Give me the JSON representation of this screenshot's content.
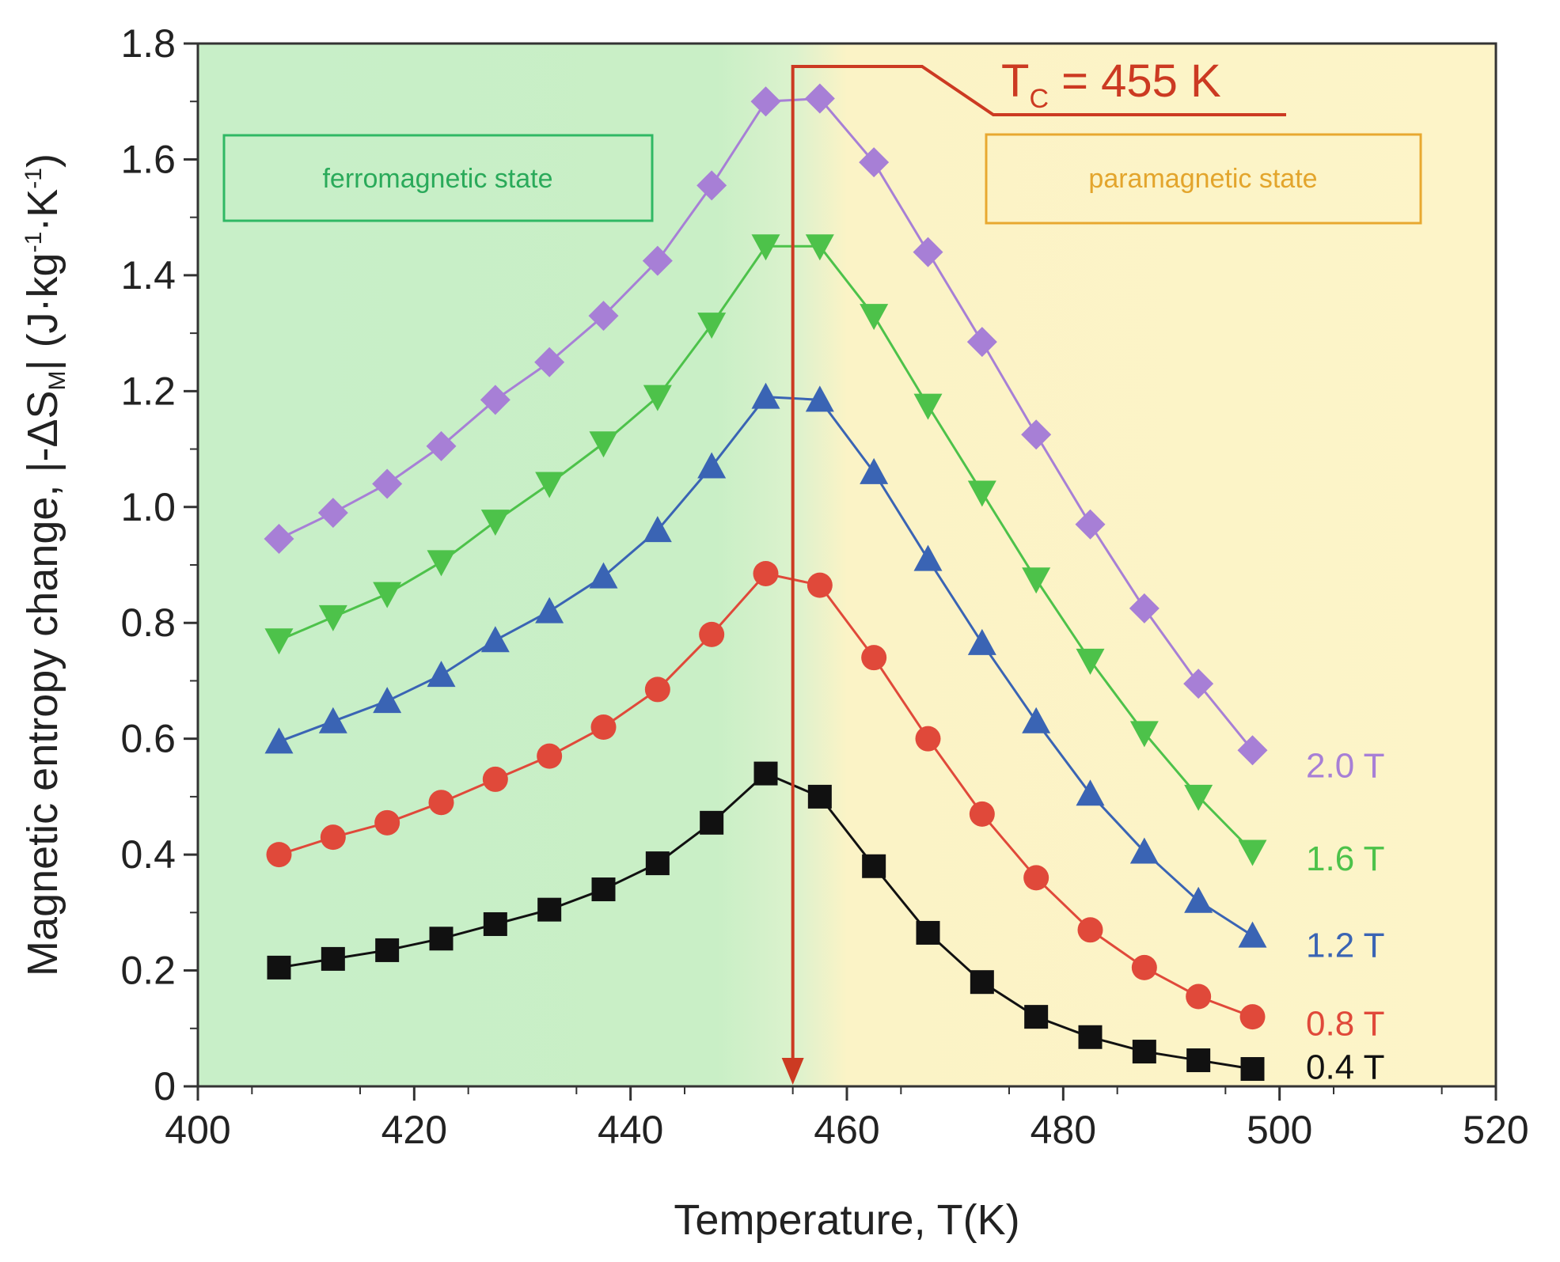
{
  "chart_data": {
    "type": "line",
    "title": "",
    "xlabel": "Temperature, T(K)",
    "ylabel": {
      "prefix": "Magnetic entropy change, |-ΔS",
      "sub": "M",
      "mid": "| (J·kg",
      "sup1": "-1",
      "mid2": "·K",
      "sup2": "-1",
      "suffix": ")"
    },
    "xlim": [
      400,
      520
    ],
    "ylim": [
      0,
      1.8
    ],
    "xticks": [
      400,
      420,
      440,
      460,
      480,
      500,
      520
    ],
    "yticks": [
      0,
      0.2,
      0.4,
      0.6,
      0.8,
      1.0,
      1.2,
      1.4,
      1.6,
      1.8
    ],
    "xtick_labels": [
      "400",
      "420",
      "440",
      "460",
      "480",
      "500",
      "520"
    ],
    "ytick_labels": [
      "0",
      "0.2",
      "0.4",
      "0.6",
      "0.8",
      "1.0",
      "1.2",
      "1.4",
      "1.6",
      "1.8"
    ],
    "x": [
      407.5,
      412.5,
      417.5,
      422.5,
      427.5,
      432.5,
      437.5,
      442.5,
      447.5,
      452.5,
      457.5,
      462.5,
      467.5,
      472.5,
      477.5,
      482.5,
      487.5,
      492.5,
      497.5
    ],
    "series": [
      {
        "name": "0.4 T",
        "color": "#111111",
        "marker": "square",
        "values": [
          0.205,
          0.22,
          0.235,
          0.255,
          0.28,
          0.305,
          0.34,
          0.385,
          0.455,
          0.54,
          0.5,
          0.38,
          0.265,
          0.18,
          0.12,
          0.085,
          0.06,
          0.045,
          0.03
        ]
      },
      {
        "name": "0.8 T",
        "color": "#e0493a",
        "marker": "circle",
        "values": [
          0.4,
          0.43,
          0.455,
          0.49,
          0.53,
          0.57,
          0.62,
          0.685,
          0.78,
          0.885,
          0.865,
          0.74,
          0.6,
          0.47,
          0.36,
          0.27,
          0.205,
          0.155,
          0.12
        ]
      },
      {
        "name": "1.2 T",
        "color": "#3a64b4",
        "marker": "triangle-up",
        "values": [
          0.595,
          0.63,
          0.665,
          0.71,
          0.77,
          0.82,
          0.88,
          0.96,
          1.07,
          1.19,
          1.185,
          1.06,
          0.91,
          0.765,
          0.63,
          0.505,
          0.405,
          0.32,
          0.26
        ]
      },
      {
        "name": "1.6 T",
        "color": "#4dc24a",
        "marker": "triangle-down",
        "values": [
          0.77,
          0.81,
          0.85,
          0.905,
          0.975,
          1.04,
          1.11,
          1.19,
          1.315,
          1.45,
          1.45,
          1.33,
          1.175,
          1.025,
          0.875,
          0.735,
          0.61,
          0.5,
          0.405
        ]
      },
      {
        "name": "2.0 T",
        "color": "#a77fd6",
        "marker": "diamond",
        "values": [
          0.945,
          0.99,
          1.04,
          1.105,
          1.185,
          1.25,
          1.33,
          1.425,
          1.555,
          1.7,
          1.705,
          1.595,
          1.44,
          1.285,
          1.125,
          0.97,
          0.825,
          0.695,
          0.58
        ]
      }
    ],
    "annotations": {
      "tc": {
        "x": 455,
        "label_main": "T",
        "label_sub": "C",
        "label_rest": " = 455 K",
        "color": "#cc3a22"
      },
      "regions": [
        {
          "name": "ferromagnetic",
          "label": "ferromagnetic state",
          "text_color": "#2aaa5a",
          "fill": "#c9f0c9"
        },
        {
          "name": "paramagnetic",
          "label": "paramagnetic state",
          "text_color": "#e3a52c",
          "fill": "#fdf4c7"
        }
      ]
    },
    "legend": "inline-right"
  }
}
